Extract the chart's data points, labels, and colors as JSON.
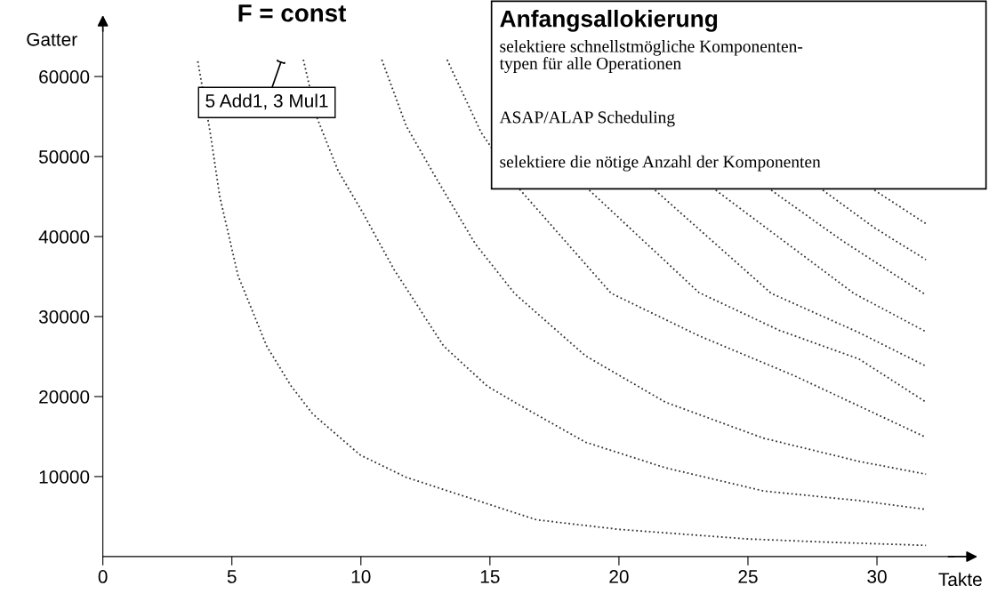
{
  "chart_data": {
    "type": "line",
    "title": "F = const",
    "xlabel": "Takte",
    "ylabel": "Gatter",
    "xlim": [
      0,
      33
    ],
    "ylim": [
      0,
      66000
    ],
    "xticks": [
      0,
      5,
      10,
      15,
      20,
      25,
      30
    ],
    "yticks": [
      10000,
      20000,
      30000,
      40000,
      50000,
      60000
    ],
    "grid": false,
    "legend": false,
    "marker": "none",
    "line_style": "dotted",
    "annotations": [
      {
        "text": "5 Add1, 3 Mul1",
        "x": 6.9,
        "y": 61800
      },
      "Anfangsallokierung",
      "selektiere schnellstmögliche Komponenten-\ntypen für alle Operationen",
      "ASAP/ALAP Scheduling",
      "selektiere die nötige Anzahl der Komponenten"
    ],
    "series": [
      {
        "color": "#333333",
        "x": [
          3.68,
          4.16,
          4.53,
          5.24,
          6.35,
          7.3,
          8.14,
          9.97,
          11.76,
          14.9,
          16.8,
          20.0,
          25.0,
          28.1,
          31.9
        ],
        "values": [
          61900,
          53000,
          45000,
          35100,
          26300,
          21300,
          17800,
          12700,
          9900,
          6600,
          4600,
          3400,
          2200,
          1800,
          1400
        ]
      },
      {
        "color": "#333333",
        "x": [
          7.77,
          8.28,
          9.12,
          10.07,
          11.28,
          13.21,
          14.9,
          15.95,
          18.7,
          21.8,
          25.6,
          29.3,
          31.9
        ],
        "values": [
          62100,
          55000,
          48200,
          43000,
          35900,
          26300,
          21300,
          19300,
          14300,
          11100,
          8200,
          7000,
          5900
        ]
      },
      {
        "color": "#333333",
        "x": [
          10.81,
          11.76,
          12.97,
          14.43,
          15.95,
          18.7,
          21.8,
          25.6,
          29.3,
          31.9
        ],
        "values": [
          62100,
          53800,
          47000,
          39100,
          32900,
          25100,
          19300,
          14800,
          11900,
          10300
        ]
      },
      {
        "color": "#333333",
        "x": [
          13.34,
          14.66,
          16.18,
          19.7,
          23.1,
          26.8,
          31.9
        ],
        "values": [
          62100,
          53000,
          45800,
          32900,
          27600,
          22600,
          14900
        ]
      },
      {
        "color": "#333333",
        "x": [
          18.85,
          23.1,
          26.2,
          29.3,
          31.9
        ],
        "values": [
          45800,
          33000,
          28300,
          24700,
          19300
        ]
      },
      {
        "color": "#333333",
        "x": [
          21.4,
          25.9,
          29.3,
          31.9
        ],
        "values": [
          45800,
          32900,
          28000,
          23800
        ]
      },
      {
        "color": "#333333",
        "x": [
          23.75,
          29.1,
          31.9
        ],
        "values": [
          45800,
          32900,
          28100
        ]
      },
      {
        "color": "#333333",
        "x": [
          25.9,
          28.6,
          31.9
        ],
        "values": [
          45800,
          39600,
          32700
        ]
      },
      {
        "color": "#333333",
        "x": [
          27.9,
          29.9,
          31.9
        ],
        "values": [
          45800,
          41100,
          37100
        ]
      },
      {
        "color": "#333333",
        "x": [
          29.9,
          31.9
        ],
        "values": [
          45800,
          41600
        ]
      }
    ]
  }
}
